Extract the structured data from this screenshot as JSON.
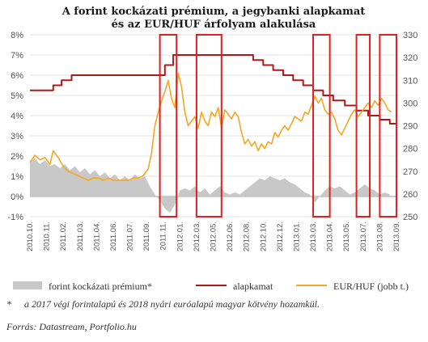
{
  "chart_data": {
    "type": "line",
    "title": [
      "A forint kockázati prémium, a jegybanki alapkamat",
      "és az EUR/HUF árfolyam alakulása"
    ],
    "left_axis": {
      "ticks": [
        "8%",
        "7%",
        "6%",
        "5%",
        "4%",
        "3%",
        "2%",
        "1%",
        "0%",
        "-1%"
      ],
      "ylim": [
        -1,
        8
      ]
    },
    "right_axis": {
      "ticks": [
        "330",
        "320",
        "310",
        "300",
        "290",
        "280",
        "270",
        "260",
        "250"
      ],
      "ylim": [
        250,
        330
      ]
    },
    "x_ticks": [
      "2010.10.",
      "2010.11.",
      "2011.02.",
      "2011.03.",
      "2011.04.",
      "2011.06.",
      "2011.07.",
      "2011.09.",
      "2011.11.",
      "2012.01.",
      "2012.03.",
      "2012.05.",
      "2012.06.",
      "2012.08.",
      "2012.10.",
      "2012.12.",
      "2013.01.",
      "2013.03.",
      "2013.04.",
      "2013.05.",
      "2013.07.",
      "2013.08.",
      "2013.09."
    ],
    "xlim": [
      0,
      22
    ],
    "series": [
      {
        "name": "forint kockázati prémium*",
        "type": "area",
        "axis": "left",
        "color": "#c8c8c8",
        "points": [
          [
            0,
            1.7
          ],
          [
            0.3,
            1.9
          ],
          [
            0.6,
            1.6
          ],
          [
            0.9,
            1.8
          ],
          [
            1.2,
            1.5
          ],
          [
            1.5,
            1.6
          ],
          [
            1.8,
            1.4
          ],
          [
            2.1,
            1.6
          ],
          [
            2.4,
            1.3
          ],
          [
            2.7,
            1.5
          ],
          [
            3.0,
            1.2
          ],
          [
            3.3,
            1.4
          ],
          [
            3.6,
            1.1
          ],
          [
            3.9,
            1.3
          ],
          [
            4.2,
            1.0
          ],
          [
            4.5,
            1.2
          ],
          [
            4.8,
            0.9
          ],
          [
            5.1,
            1.1
          ],
          [
            5.4,
            0.8
          ],
          [
            5.7,
            1.0
          ],
          [
            6.0,
            0.8
          ],
          [
            6.3,
            1.1
          ],
          [
            6.6,
            0.9
          ],
          [
            6.9,
            1.0
          ],
          [
            7.2,
            0.5
          ],
          [
            7.5,
            0.1
          ],
          [
            7.8,
            -0.2
          ],
          [
            8.1,
            -0.6
          ],
          [
            8.4,
            -0.8
          ],
          [
            8.7,
            -0.4
          ],
          [
            9.0,
            0.3
          ],
          [
            9.3,
            0.4
          ],
          [
            9.6,
            0.3
          ],
          [
            9.9,
            0.5
          ],
          [
            10.2,
            0.2
          ],
          [
            10.5,
            0.4
          ],
          [
            10.8,
            0.1
          ],
          [
            11.1,
            0.3
          ],
          [
            11.4,
            0.5
          ],
          [
            11.7,
            0.2
          ],
          [
            12.0,
            0.1
          ],
          [
            12.3,
            0.2
          ],
          [
            12.6,
            0.1
          ],
          [
            12.9,
            0.3
          ],
          [
            13.2,
            0.5
          ],
          [
            13.5,
            0.7
          ],
          [
            13.8,
            0.9
          ],
          [
            14.1,
            0.8
          ],
          [
            14.4,
            1.0
          ],
          [
            14.7,
            0.9
          ],
          [
            15.0,
            0.8
          ],
          [
            15.3,
            0.9
          ],
          [
            15.6,
            0.7
          ],
          [
            15.9,
            0.6
          ],
          [
            16.2,
            0.4
          ],
          [
            16.5,
            0.2
          ],
          [
            16.8,
            0.1
          ],
          [
            17.1,
            -0.3
          ],
          [
            17.4,
            0.0
          ],
          [
            17.7,
            0.3
          ],
          [
            18.0,
            0.5
          ],
          [
            18.3,
            0.4
          ],
          [
            18.6,
            0.5
          ],
          [
            18.9,
            0.3
          ],
          [
            19.2,
            0.1
          ],
          [
            19.5,
            0.2
          ],
          [
            19.8,
            0.4
          ],
          [
            20.1,
            0.6
          ],
          [
            20.4,
            0.4
          ],
          [
            20.7,
            0.3
          ],
          [
            21.0,
            0.1
          ],
          [
            21.3,
            0.2
          ],
          [
            21.6,
            0.1
          ]
        ]
      },
      {
        "name": "alapkamat",
        "type": "step",
        "axis": "left",
        "color": "#b01818",
        "points": [
          [
            0,
            5.25
          ],
          [
            1.4,
            5.25
          ],
          [
            1.4,
            5.5
          ],
          [
            1.9,
            5.5
          ],
          [
            1.9,
            5.75
          ],
          [
            2.5,
            5.75
          ],
          [
            2.5,
            6.0
          ],
          [
            8.1,
            6.0
          ],
          [
            8.1,
            6.5
          ],
          [
            8.6,
            6.5
          ],
          [
            8.6,
            7.0
          ],
          [
            13.4,
            7.0
          ],
          [
            13.4,
            6.75
          ],
          [
            14.0,
            6.75
          ],
          [
            14.0,
            6.5
          ],
          [
            14.6,
            6.5
          ],
          [
            14.6,
            6.25
          ],
          [
            15.2,
            6.25
          ],
          [
            15.2,
            6.0
          ],
          [
            15.8,
            6.0
          ],
          [
            15.8,
            5.75
          ],
          [
            16.4,
            5.75
          ],
          [
            16.4,
            5.5
          ],
          [
            17.0,
            5.5
          ],
          [
            17.0,
            5.25
          ],
          [
            17.6,
            5.25
          ],
          [
            17.6,
            5.0
          ],
          [
            18.2,
            5.0
          ],
          [
            18.2,
            4.75
          ],
          [
            18.9,
            4.75
          ],
          [
            18.9,
            4.5
          ],
          [
            19.6,
            4.5
          ],
          [
            19.6,
            4.25
          ],
          [
            20.3,
            4.25
          ],
          [
            20.3,
            4.0
          ],
          [
            21.0,
            4.0
          ],
          [
            21.0,
            3.8
          ],
          [
            21.6,
            3.8
          ],
          [
            21.6,
            3.6
          ],
          [
            22.0,
            3.6
          ]
        ]
      },
      {
        "name": "EUR/HUF (jobb t.)",
        "type": "line",
        "axis": "right",
        "color": "#f5a623",
        "points": [
          [
            0,
            274
          ],
          [
            0.3,
            277
          ],
          [
            0.6,
            275
          ],
          [
            0.9,
            276
          ],
          [
            1.2,
            273
          ],
          [
            1.4,
            279
          ],
          [
            1.7,
            276
          ],
          [
            2.0,
            272
          ],
          [
            2.3,
            270
          ],
          [
            2.6,
            269
          ],
          [
            2.9,
            268
          ],
          [
            3.2,
            267
          ],
          [
            3.5,
            266
          ],
          [
            3.8,
            267
          ],
          [
            4.1,
            267
          ],
          [
            4.4,
            266
          ],
          [
            4.7,
            267
          ],
          [
            5.0,
            266
          ],
          [
            5.3,
            266
          ],
          [
            5.6,
            266
          ],
          [
            5.9,
            266
          ],
          [
            6.2,
            267
          ],
          [
            6.5,
            267
          ],
          [
            6.8,
            268
          ],
          [
            7.1,
            271
          ],
          [
            7.3,
            278
          ],
          [
            7.5,
            290
          ],
          [
            7.7,
            296
          ],
          [
            7.9,
            301
          ],
          [
            8.1,
            305
          ],
          [
            8.3,
            310
          ],
          [
            8.5,
            302
          ],
          [
            8.7,
            298
          ],
          [
            8.9,
            313
          ],
          [
            9.1,
            307
          ],
          [
            9.3,
            296
          ],
          [
            9.5,
            290
          ],
          [
            9.7,
            292
          ],
          [
            9.9,
            294
          ],
          [
            10.1,
            289
          ],
          [
            10.3,
            296
          ],
          [
            10.5,
            292
          ],
          [
            10.7,
            290
          ],
          [
            10.9,
            296
          ],
          [
            11.1,
            294
          ],
          [
            11.3,
            298
          ],
          [
            11.5,
            289
          ],
          [
            11.7,
            297
          ],
          [
            11.9,
            295
          ],
          [
            12.1,
            293
          ],
          [
            12.3,
            296
          ],
          [
            12.5,
            294
          ],
          [
            12.7,
            287
          ],
          [
            12.9,
            282
          ],
          [
            13.1,
            284
          ],
          [
            13.3,
            281
          ],
          [
            13.5,
            283
          ],
          [
            13.7,
            279
          ],
          [
            13.9,
            282
          ],
          [
            14.1,
            280
          ],
          [
            14.3,
            283
          ],
          [
            14.5,
            282
          ],
          [
            14.7,
            287
          ],
          [
            14.9,
            285
          ],
          [
            15.1,
            288
          ],
          [
            15.3,
            290
          ],
          [
            15.5,
            288
          ],
          [
            15.7,
            291
          ],
          [
            15.9,
            294
          ],
          [
            16.1,
            293
          ],
          [
            16.3,
            292
          ],
          [
            16.5,
            296
          ],
          [
            16.7,
            295
          ],
          [
            16.9,
            299
          ],
          [
            17.1,
            303
          ],
          [
            17.3,
            300
          ],
          [
            17.5,
            302
          ],
          [
            17.7,
            297
          ],
          [
            17.9,
            295
          ],
          [
            18.1,
            296
          ],
          [
            18.3,
            293
          ],
          [
            18.5,
            288
          ],
          [
            18.7,
            286
          ],
          [
            18.9,
            289
          ],
          [
            19.1,
            292
          ],
          [
            19.3,
            295
          ],
          [
            19.5,
            297
          ],
          [
            19.7,
            294
          ],
          [
            19.9,
            296
          ],
          [
            20.1,
            298
          ],
          [
            20.3,
            300
          ],
          [
            20.5,
            298
          ],
          [
            20.7,
            301
          ],
          [
            20.9,
            299
          ],
          [
            21.1,
            302
          ],
          [
            21.3,
            300
          ],
          [
            21.5,
            297
          ],
          [
            21.7,
            296
          ]
        ]
      }
    ],
    "highlight_ranges": [
      [
        7.8,
        8.8
      ],
      [
        10.0,
        11.5
      ],
      [
        17.0,
        18.0
      ],
      [
        19.6,
        20.4
      ],
      [
        21.0,
        22.0
      ]
    ],
    "highlight_color": "#e02020",
    "legend": {
      "placement": "bottom",
      "items": [
        "forint kockázati prémium*",
        "alapkamat",
        "EUR/HUF (jobb t.)"
      ]
    },
    "footnote": [
      "*",
      "a 2017 végi forintalapú és 2018 nyári euróalapú magyar kötvény hozamkül."
    ],
    "source": "Forrás: Datastream, Portfolio.hu"
  }
}
